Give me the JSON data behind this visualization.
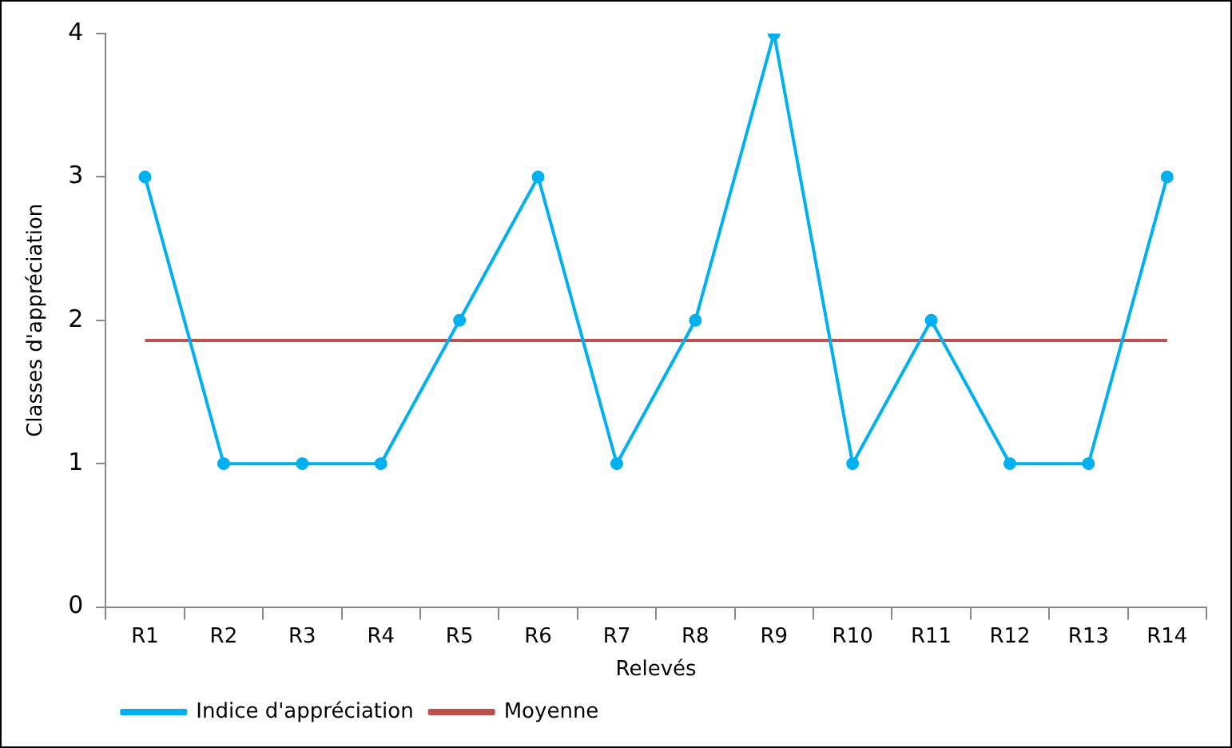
{
  "chart_data": {
    "type": "line",
    "xlabel": "Relevés",
    "ylabel": "Classes d'appréciation",
    "categories": [
      "R1",
      "R2",
      "R3",
      "R4",
      "R5",
      "R6",
      "R7",
      "R8",
      "R9",
      "R10",
      "R11",
      "R12",
      "R13",
      "R14"
    ],
    "series": [
      {
        "name": "Indice d'appréciation",
        "color": "#00b0f0",
        "values": [
          3,
          1,
          1,
          1,
          2,
          3,
          1,
          2,
          4,
          1,
          2,
          1,
          1,
          3
        ],
        "marker": "circle"
      },
      {
        "name": "Moyenne",
        "color": "#c0504d",
        "values": [
          1.86,
          1.86,
          1.86,
          1.86,
          1.86,
          1.86,
          1.86,
          1.86,
          1.86,
          1.86,
          1.86,
          1.86,
          1.86,
          1.86
        ],
        "marker": "none"
      }
    ],
    "ylim": [
      0,
      4
    ],
    "yticks": [
      0,
      1,
      2,
      3,
      4
    ],
    "grid": false,
    "legend": "bottom left",
    "line_style": "solid"
  }
}
